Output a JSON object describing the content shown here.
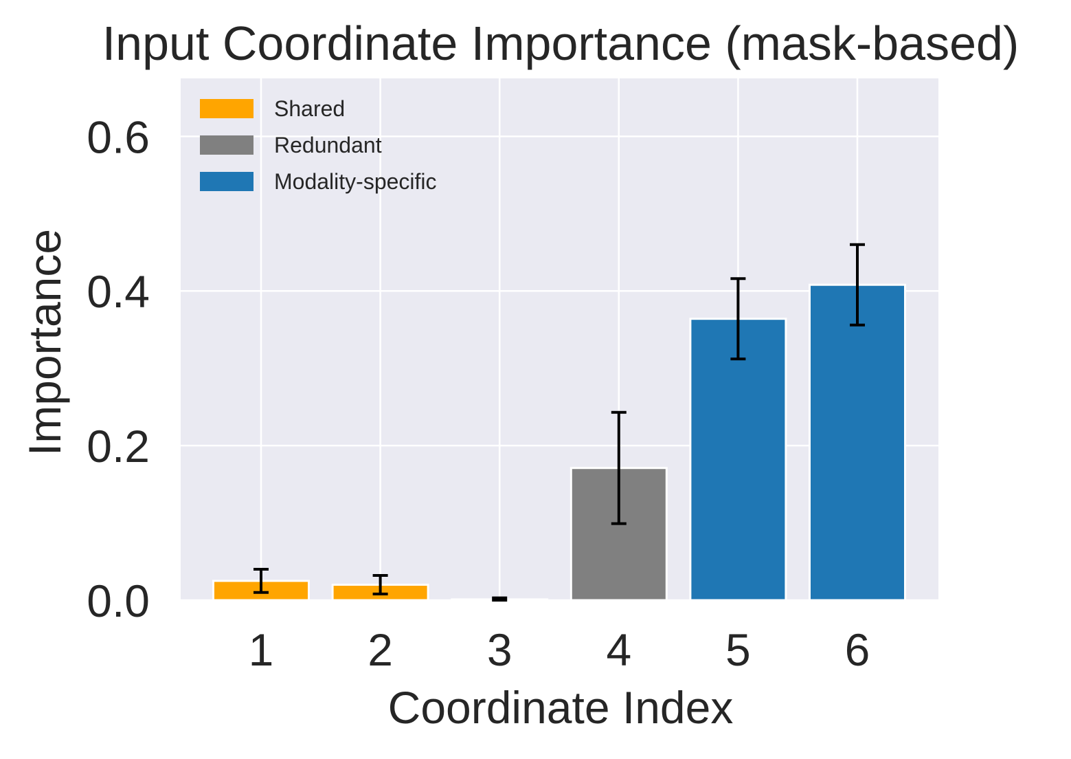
{
  "chart_data": {
    "type": "bar",
    "title": "Input Coordinate Importance (mask-based)",
    "xlabel": "Coordinate Index",
    "ylabel": "Importance",
    "categories": [
      "1",
      "2",
      "3",
      "4",
      "5",
      "6"
    ],
    "values": [
      0.025,
      0.02,
      0.001,
      0.171,
      0.364,
      0.408
    ],
    "errors": [
      0.015,
      0.012,
      0.002,
      0.072,
      0.052,
      0.052
    ],
    "groups": [
      "Shared",
      "Shared",
      "Shared",
      "Redundant",
      "Modality-specific",
      "Modality-specific"
    ],
    "legend": [
      {
        "label": "Shared",
        "color": "#ffa500"
      },
      {
        "label": "Redundant",
        "color": "#808080"
      },
      {
        "label": "Modality-specific",
        "color": "#1f77b4"
      }
    ],
    "legend_position": "top-left",
    "yticks": [
      "0.0",
      "0.2",
      "0.4",
      "0.6"
    ],
    "ylim": [
      0,
      0.675
    ],
    "grid": true,
    "background_color": "#eaeaf2",
    "grid_color": "#ffffff",
    "errorbar_color": "#000000"
  }
}
